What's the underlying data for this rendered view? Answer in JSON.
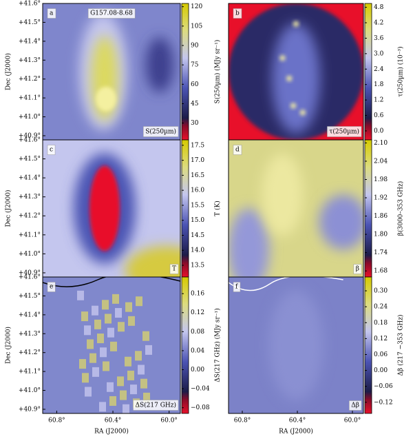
{
  "chart_data": [
    {
      "type": "heatmap",
      "label": "a",
      "title": "G157.08-8.68",
      "annotation": "S(250µm)",
      "colorbar_label": "S(250µm) (MJy sr⁻¹)",
      "clim": [
        17,
        122.5
      ],
      "cticks": [
        30,
        45,
        60,
        75,
        90,
        105,
        120
      ],
      "xlim": [
        60.9,
        59.92
      ],
      "ylim": [
        40.878,
        41.6
      ],
      "ylabel": "Dec (J2000)",
      "yticks": [
        {
          "value": 40.9,
          "label": "+40.9°"
        },
        {
          "value": 41.0,
          "label": "+41.0°"
        },
        {
          "value": 41.1,
          "label": "+41.1°"
        },
        {
          "value": 41.2,
          "label": "+41.2°"
        },
        {
          "value": 41.3,
          "label": "+41.3°"
        },
        {
          "value": 41.4,
          "label": "+41.4°"
        },
        {
          "value": 41.5,
          "label": "+41.5°"
        },
        {
          "value": 41.6,
          "label": "+41.6°"
        }
      ]
    },
    {
      "type": "heatmap",
      "label": "b",
      "annotation": "τ(250µm)",
      "colorbar_label": "τ(250µm) (10⁻³)",
      "clim": [
        -0.35,
        4.95
      ],
      "cticks": [
        {
          "value": 0,
          "label": "0.0"
        },
        0.6,
        1.2,
        1.8,
        2.4,
        {
          "value": 3,
          "label": "3.0"
        },
        3.6,
        4.2,
        4.8
      ],
      "xlim": [
        60.9,
        59.92
      ],
      "ylim": [
        40.878,
        41.6
      ]
    },
    {
      "type": "heatmap",
      "label": "c",
      "annotation": "T",
      "colorbar_label": "T (K)",
      "clim": [
        13.11,
        17.68
      ],
      "cticks": [
        13.5,
        {
          "value": 14,
          "label": "14.0"
        },
        14.5,
        {
          "value": 15,
          "label": "15.0"
        },
        15.5,
        {
          "value": 16,
          "label": "16.0"
        },
        16.5,
        {
          "value": 17,
          "label": "17.0"
        },
        17.5
      ],
      "xlim": [
        60.9,
        59.92
      ],
      "ylim": [
        40.878,
        41.6
      ],
      "ylabel": "Dec (J2000)",
      "yticks": [
        {
          "value": 40.9,
          "label": "+40.9°"
        },
        {
          "value": 41.0,
          "label": "+41.0°"
        },
        {
          "value": 41.1,
          "label": "+41.1°"
        },
        {
          "value": 41.2,
          "label": "+41.2°"
        },
        {
          "value": 41.3,
          "label": "+41.3°"
        },
        {
          "value": 41.4,
          "label": "+41.4°"
        },
        {
          "value": 41.5,
          "label": "+41.5°"
        },
        {
          "value": 41.6,
          "label": "+41.6°"
        }
      ]
    },
    {
      "type": "heatmap",
      "label": "d",
      "annotation": "β",
      "colorbar_label": "β(3000–353 GHz)",
      "clim": [
        1.66,
        2.11
      ],
      "cticks": [
        1.68,
        1.74,
        {
          "value": 1.8,
          "label": "1.80"
        },
        1.86,
        1.92,
        1.98,
        2.04,
        {
          "value": 2.1,
          "label": "2.10"
        }
      ],
      "xlim": [
        60.9,
        59.92
      ],
      "ylim": [
        40.878,
        41.6
      ]
    },
    {
      "type": "heatmap",
      "label": "e",
      "annotation": "ΔS(217 GHz)",
      "colorbar_label": "ΔS(217 GHz) (MJy sr⁻¹)",
      "clim": [
        -0.092,
        0.195
      ],
      "cticks": [
        {
          "value": -0.08,
          "label": "−0.08"
        },
        {
          "value": -0.04,
          "label": "−0.04"
        },
        {
          "value": 0,
          "label": "0.00"
        },
        0.04,
        0.08,
        0.12,
        0.16
      ],
      "xlim": [
        60.9,
        59.92
      ],
      "ylim": [
        40.878,
        41.6
      ],
      "ylabel": "Dec (J2000)",
      "xlabel": "RA (J2000)",
      "xticks": [
        {
          "value": 60.8,
          "label": "60.8°"
        },
        {
          "value": 60.4,
          "label": "60.4°"
        },
        {
          "value": 60.0,
          "label": "60.0°"
        }
      ],
      "yticks": [
        {
          "value": 40.9,
          "label": "+40.9°"
        },
        {
          "value": 41.0,
          "label": "+41.0°"
        },
        {
          "value": 41.1,
          "label": "+41.1°"
        },
        {
          "value": 41.2,
          "label": "+41.2°"
        },
        {
          "value": 41.3,
          "label": "+41.3°"
        },
        {
          "value": 41.4,
          "label": "+41.4°"
        },
        {
          "value": 41.5,
          "label": "+41.5°"
        },
        {
          "value": 41.6,
          "label": "+41.6°"
        }
      ]
    },
    {
      "type": "heatmap",
      "label": "f",
      "annotation": "Δβ",
      "colorbar_label": "Δβ (217 −353 GHz)",
      "clim": [
        -0.162,
        0.352
      ],
      "cticks": [
        {
          "value": -0.12,
          "label": "−0.12"
        },
        {
          "value": -0.06,
          "label": "−0.06"
        },
        {
          "value": 0,
          "label": "0.00"
        },
        0.06,
        0.12,
        0.18,
        0.24,
        {
          "value": 0.3,
          "label": "0.30"
        }
      ],
      "xlim": [
        60.9,
        59.92
      ],
      "ylim": [
        40.878,
        41.6
      ],
      "xlabel": "RA (J2000)",
      "xticks": [
        {
          "value": 60.8,
          "label": "60.8°"
        },
        {
          "value": 60.4,
          "label": "60.4°"
        },
        {
          "value": 60.0,
          "label": "60.0°"
        }
      ]
    }
  ]
}
